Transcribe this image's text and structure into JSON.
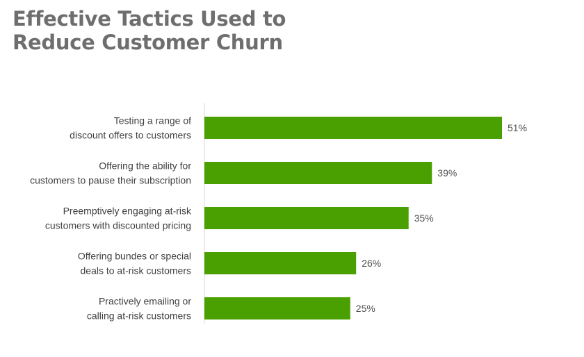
{
  "title_lines": [
    "Effective Tactics Used to",
    "Reduce Customer Churn"
  ],
  "colors": {
    "bar": "#4aa000",
    "axis": "#d9d9d9",
    "title": "#6e6e6e",
    "label": "#404040"
  },
  "chart_data": {
    "type": "bar",
    "orientation": "horizontal",
    "title": "Effective Tactics Used to Reduce Customer Churn",
    "categories": [
      [
        "Testing a range of",
        "discount offers to customers"
      ],
      [
        "Offering the ability for",
        "customers to pause their subscription"
      ],
      [
        "Preemptively engaging at-risk",
        "customers with discounted pricing"
      ],
      [
        "Offering bundes or special",
        "deals to at-risk customers"
      ],
      [
        "Practively emailing or",
        "calling at-risk customers"
      ]
    ],
    "values": [
      51,
      39,
      35,
      26,
      25
    ],
    "value_labels": [
      "51%",
      "39%",
      "35%",
      "26%",
      "25%"
    ],
    "unit": "%",
    "xlim": [
      0,
      51
    ],
    "grid": false,
    "legend": "none"
  }
}
